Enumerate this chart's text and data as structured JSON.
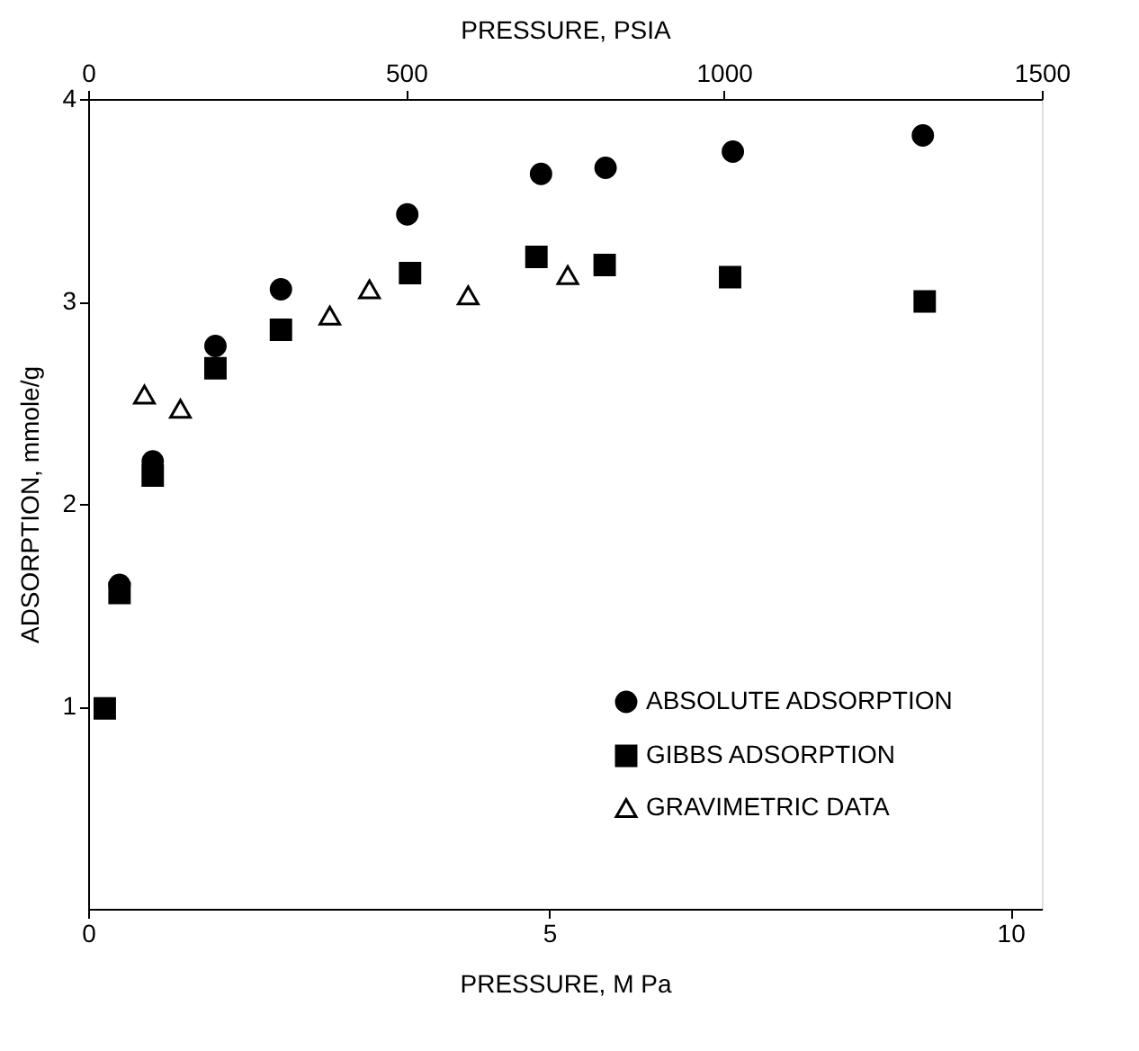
{
  "chart_data": {
    "type": "scatter",
    "xlabel": "PRESSURE, M Pa",
    "ylabel": "ADSORPTION, mmole/g",
    "x2label": "PRESSURE, PSIA",
    "xlim": [
      0,
      10.34
    ],
    "xticks": [
      0,
      5,
      10
    ],
    "x2lim": [
      0,
      1500
    ],
    "x2ticks": [
      0,
      500,
      1000,
      1500
    ],
    "ylim": [
      0,
      4
    ],
    "yticks": [
      1,
      2,
      3,
      4
    ],
    "grid": false,
    "legend": "bottom right",
    "series": [
      {
        "name": "ABSOLUTE ADSORPTION",
        "color": "#000000",
        "marker": "circle",
        "x": [
          0.34,
          0.7,
          1.38,
          2.09,
          3.46,
          4.91,
          5.61,
          6.99,
          9.05
        ],
        "values": [
          1.6,
          2.21,
          2.78,
          3.06,
          3.43,
          3.63,
          3.66,
          3.74,
          3.82
        ]
      },
      {
        "name": "GIBBS ADSORPTION",
        "color": "#000000",
        "marker": "square",
        "x": [
          0.18,
          0.34,
          0.7,
          1.38,
          2.09,
          3.49,
          4.86,
          5.6,
          6.96,
          9.07
        ],
        "values": [
          0.99,
          1.56,
          2.14,
          2.67,
          2.86,
          3.14,
          3.22,
          3.18,
          3.12,
          3.0
        ]
      },
      {
        "name": "GRAVIMETRIC DATA",
        "color": "#000000",
        "marker": "triangle",
        "x": [
          0.61,
          1.0,
          2.62,
          3.05,
          4.12,
          5.2
        ],
        "values": [
          2.54,
          2.47,
          2.93,
          3.06,
          3.03,
          3.13
        ]
      }
    ]
  }
}
